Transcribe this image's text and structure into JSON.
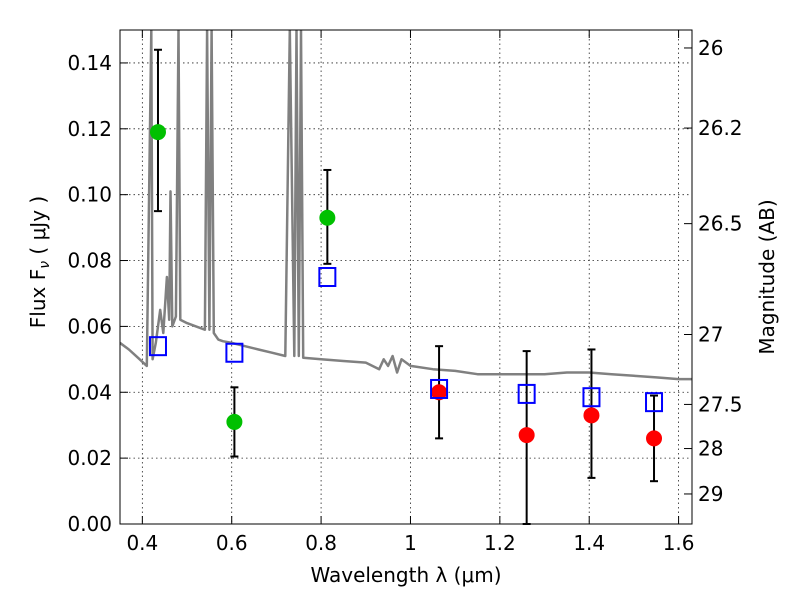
{
  "chart_data": {
    "type": "scatter",
    "xlabel": "Wavelength  λ (μm)",
    "ylabel": "Flux  F",
    "ylabel_sub": "ν",
    "ylabel_unit": "  ( μJy )",
    "y2label": "Magnitude (AB)",
    "xlim": [
      0.35,
      1.63
    ],
    "ylim": [
      0,
      0.15
    ],
    "grid": true,
    "xticks": [
      {
        "value": 0.4,
        "label": "0.4"
      },
      {
        "value": 0.6,
        "label": "0.6"
      },
      {
        "value": 0.8,
        "label": "0.8"
      },
      {
        "value": 1.0,
        "label": "1"
      },
      {
        "value": 1.2,
        "label": "1.2"
      },
      {
        "value": 1.4,
        "label": "1.4"
      },
      {
        "value": 1.6,
        "label": "1.6"
      }
    ],
    "yticks": [
      {
        "value": 0.0,
        "label": "0.00"
      },
      {
        "value": 0.02,
        "label": "0.02"
      },
      {
        "value": 0.04,
        "label": "0.04"
      },
      {
        "value": 0.06,
        "label": "0.06"
      },
      {
        "value": 0.08,
        "label": "0.08"
      },
      {
        "value": 0.1,
        "label": "0.10"
      },
      {
        "value": 0.12,
        "label": "0.12"
      },
      {
        "value": 0.14,
        "label": "0.14"
      }
    ],
    "y2ticks": [
      {
        "value": 26,
        "label": "26"
      },
      {
        "value": 26.2,
        "label": "26.2"
      },
      {
        "value": 26.5,
        "label": "26.5"
      },
      {
        "value": 27,
        "label": "27"
      },
      {
        "value": 27.5,
        "label": "27.5"
      },
      {
        "value": 28,
        "label": "28"
      },
      {
        "value": 29,
        "label": "29"
      }
    ],
    "y2_zero_point_ab": 23.9,
    "series": [
      {
        "marker": "circle",
        "color": "#00c000",
        "points": [
          {
            "x": 0.435,
            "y": 0.119,
            "err_low": 0.024,
            "err_high": 0.025
          },
          {
            "x": 0.606,
            "y": 0.031,
            "err_low": 0.0105,
            "err_high": 0.0105
          },
          {
            "x": 0.814,
            "y": 0.093,
            "err_low": 0.014,
            "err_high": 0.0145
          }
        ]
      },
      {
        "marker": "circle",
        "color": "#ff0000",
        "points": [
          {
            "x": 1.064,
            "y": 0.04,
            "err_low": 0.014,
            "err_high": 0.014
          },
          {
            "x": 1.26,
            "y": 0.027,
            "err_low": 0.027,
            "err_high": 0.0255
          },
          {
            "x": 1.405,
            "y": 0.033,
            "err_low": 0.019,
            "err_high": 0.02
          },
          {
            "x": 1.545,
            "y": 0.026,
            "err_low": 0.013,
            "err_high": 0.013
          }
        ]
      },
      {
        "marker": "open-square",
        "color": "#0000ff",
        "points": [
          {
            "x": 0.435,
            "y": 0.054
          },
          {
            "x": 0.606,
            "y": 0.052
          },
          {
            "x": 0.814,
            "y": 0.075
          },
          {
            "x": 1.064,
            "y": 0.041
          },
          {
            "x": 1.26,
            "y": 0.0395
          },
          {
            "x": 1.405,
            "y": 0.0385
          },
          {
            "x": 1.545,
            "y": 0.037
          }
        ]
      },
      {
        "type": "line",
        "color": "#808080",
        "points": [
          [
            0.35,
            0.055
          ],
          [
            0.37,
            0.053
          ],
          [
            0.39,
            0.0505
          ],
          [
            0.41,
            0.048
          ],
          [
            0.42,
            0.15
          ],
          [
            0.423,
            0.05
          ],
          [
            0.43,
            0.055
          ],
          [
            0.44,
            0.065
          ],
          [
            0.447,
            0.058
          ],
          [
            0.455,
            0.075
          ],
          [
            0.46,
            0.062
          ],
          [
            0.463,
            0.101
          ],
          [
            0.467,
            0.06
          ],
          [
            0.475,
            0.063
          ],
          [
            0.481,
            0.15
          ],
          [
            0.485,
            0.062
          ],
          [
            0.5,
            0.061
          ],
          [
            0.52,
            0.06
          ],
          [
            0.54,
            0.059
          ],
          [
            0.545,
            0.15
          ],
          [
            0.55,
            0.059
          ],
          [
            0.555,
            0.15
          ],
          [
            0.56,
            0.058
          ],
          [
            0.57,
            0.056
          ],
          [
            0.58,
            0.0555
          ],
          [
            0.6,
            0.055
          ],
          [
            0.63,
            0.054
          ],
          [
            0.66,
            0.053
          ],
          [
            0.69,
            0.052
          ],
          [
            0.72,
            0.051
          ],
          [
            0.73,
            0.15
          ],
          [
            0.74,
            0.051
          ],
          [
            0.745,
            0.15
          ],
          [
            0.75,
            0.051
          ],
          [
            0.755,
            0.15
          ],
          [
            0.76,
            0.0505
          ],
          [
            0.8,
            0.05
          ],
          [
            0.85,
            0.0495
          ],
          [
            0.9,
            0.049
          ],
          [
            0.93,
            0.047
          ],
          [
            0.94,
            0.05
          ],
          [
            0.95,
            0.048
          ],
          [
            0.96,
            0.051
          ],
          [
            0.97,
            0.046
          ],
          [
            0.98,
            0.05
          ],
          [
            1.0,
            0.048
          ],
          [
            1.05,
            0.047
          ],
          [
            1.1,
            0.0465
          ],
          [
            1.15,
            0.0455
          ],
          [
            1.2,
            0.0455
          ],
          [
            1.25,
            0.0455
          ],
          [
            1.3,
            0.0455
          ],
          [
            1.35,
            0.046
          ],
          [
            1.4,
            0.046
          ],
          [
            1.45,
            0.0455
          ],
          [
            1.5,
            0.045
          ],
          [
            1.55,
            0.0445
          ],
          [
            1.6,
            0.044
          ],
          [
            1.63,
            0.044
          ]
        ]
      }
    ]
  }
}
